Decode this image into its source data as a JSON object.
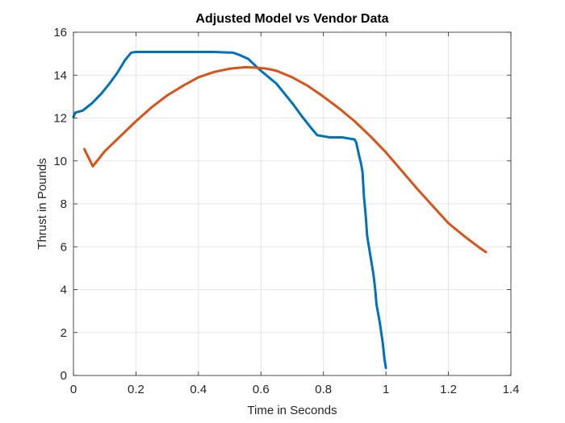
{
  "chart_data": {
    "type": "line",
    "title": "Adjusted Model vs Vendor Data",
    "xlabel": "Time in Seconds",
    "ylabel": "Thrust in Pounds",
    "xlim": [
      0,
      1.4
    ],
    "ylim": [
      0,
      16
    ],
    "xticks": [
      0,
      0.2,
      0.4,
      0.6,
      0.8,
      1,
      1.2,
      1.4
    ],
    "xtick_labels": [
      "0",
      "0.2",
      "0.4",
      "0.6",
      "0.8",
      "1",
      "1.2",
      "1.4"
    ],
    "yticks": [
      0,
      2,
      4,
      6,
      8,
      10,
      12,
      14,
      16
    ],
    "ytick_labels": [
      "0",
      "2",
      "4",
      "6",
      "8",
      "10",
      "12",
      "14",
      "16"
    ],
    "grid": true,
    "legend": "none",
    "series": [
      {
        "color": "#0072BD",
        "x": [
          0,
          0.006,
          0.03,
          0.06,
          0.09,
          0.115,
          0.14,
          0.165,
          0.185,
          0.2,
          0.25,
          0.3,
          0.35,
          0.4,
          0.45,
          0.5,
          0.51,
          0.53,
          0.56,
          0.585,
          0.6,
          0.65,
          0.7,
          0.73,
          0.76,
          0.78,
          0.8,
          0.82,
          0.86,
          0.88,
          0.9,
          0.905,
          0.915,
          0.92,
          0.925,
          0.93,
          0.935,
          0.94,
          0.95,
          0.96,
          0.965,
          0.97,
          0.98,
          0.99,
          0.995,
          1.0
        ],
        "y": [
          12.05,
          12.25,
          12.35,
          12.7,
          13.15,
          13.6,
          14.1,
          14.7,
          15.05,
          15.08,
          15.08,
          15.08,
          15.08,
          15.08,
          15.08,
          15.05,
          15.05,
          14.95,
          14.75,
          14.4,
          14.2,
          13.6,
          12.7,
          12.1,
          11.55,
          11.2,
          11.15,
          11.1,
          11.1,
          11.05,
          11.0,
          10.85,
          10.2,
          9.9,
          9.5,
          8.3,
          7.5,
          6.5,
          5.6,
          4.7,
          4.1,
          3.3,
          2.5,
          1.5,
          0.8,
          0.35
        ]
      },
      {
        "color": "#D95319",
        "x": [
          0.035,
          0.062,
          0.1,
          0.15,
          0.2,
          0.25,
          0.3,
          0.35,
          0.4,
          0.45,
          0.5,
          0.55,
          0.58,
          0.62,
          0.65,
          0.7,
          0.75,
          0.8,
          0.85,
          0.9,
          0.95,
          1.0,
          1.05,
          1.1,
          1.15,
          1.2,
          1.25,
          1.3,
          1.32
        ],
        "y": [
          10.55,
          9.75,
          10.45,
          11.15,
          11.85,
          12.5,
          13.05,
          13.5,
          13.9,
          14.15,
          14.3,
          14.37,
          14.35,
          14.3,
          14.2,
          13.9,
          13.5,
          13.0,
          12.45,
          11.85,
          11.15,
          10.4,
          9.55,
          8.7,
          7.9,
          7.1,
          6.5,
          5.95,
          5.75
        ]
      }
    ]
  }
}
